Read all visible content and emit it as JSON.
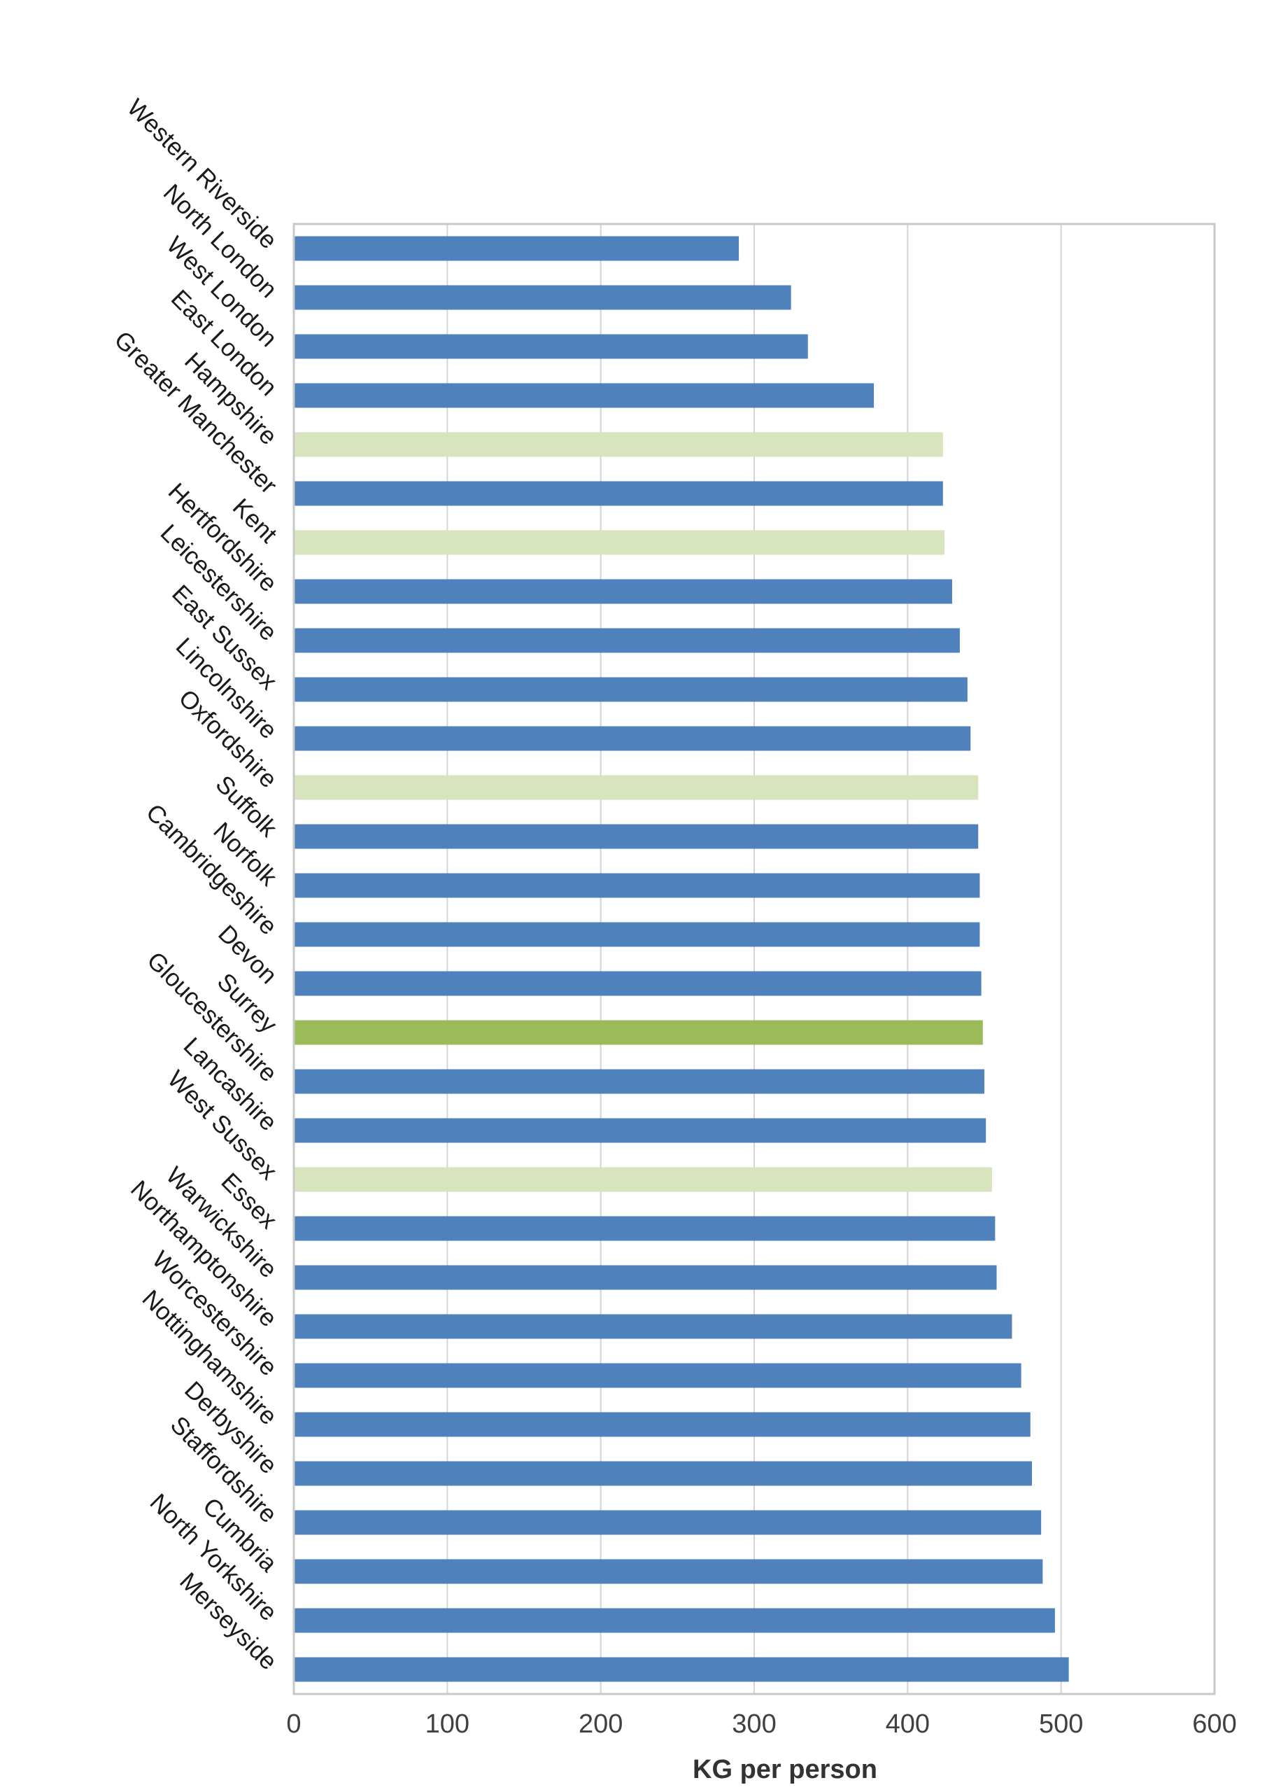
{
  "chart_data": {
    "type": "bar",
    "orientation": "horizontal",
    "title": "",
    "xlabel": "KG per person",
    "ylabel": "",
    "xlim": [
      0,
      600
    ],
    "xticks": [
      0,
      100,
      200,
      300,
      400,
      500,
      600
    ],
    "grid": "vertical",
    "legend": "none",
    "colors": {
      "blue": "#4f81bd",
      "light_green": "#d7e4bd",
      "green": "#9bbb59"
    },
    "categories": [
      "Western Riverside",
      "North London",
      "West London",
      "East London",
      "Hampshire",
      "Greater Manchester",
      "Kent",
      "Hertfordshire",
      "Leicestershire",
      "East Sussex",
      "Lincolnshire",
      "Oxfordshire",
      "Suffolk",
      "Norfolk",
      "Cambridgeshire",
      "Devon",
      "Surrey",
      "Gloucestershire",
      "Lancashire",
      "West Sussex",
      "Essex",
      "Warwickshire",
      "Northamptonshire",
      "Worcestershire",
      "Nottinghamshire",
      "Derbyshire",
      "Staffordshire",
      "Cumbria",
      "North Yorkshire",
      "Merseyside"
    ],
    "values": [
      290,
      324,
      335,
      378,
      423,
      423,
      424,
      429,
      434,
      439,
      441,
      446,
      446,
      447,
      447,
      448,
      449,
      450,
      451,
      455,
      457,
      458,
      468,
      474,
      480,
      481,
      487,
      488,
      496,
      505
    ],
    "bar_colors": [
      "blue",
      "blue",
      "blue",
      "blue",
      "light_green",
      "blue",
      "light_green",
      "blue",
      "blue",
      "blue",
      "blue",
      "light_green",
      "blue",
      "blue",
      "blue",
      "blue",
      "green",
      "blue",
      "blue",
      "light_green",
      "blue",
      "blue",
      "blue",
      "blue",
      "blue",
      "blue",
      "blue",
      "blue",
      "blue",
      "blue"
    ]
  }
}
